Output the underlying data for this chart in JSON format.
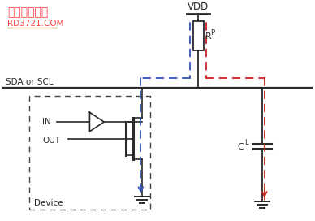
{
  "title_text": "手机设计天下",
  "subtitle_text": "RD3721.COM",
  "title_color": "#FF4444",
  "subtitle_color": "#FF4444",
  "vdd_label": "VDD",
  "rp_label": "R",
  "rp_sub": "P",
  "cl_label": "C",
  "cl_sub": "L",
  "sda_label": "SDA or SCL",
  "in_label": "IN",
  "out_label": "OUT",
  "device_label": "Device",
  "bg_color": "#FFFFFF",
  "line_color": "#2a2a2a",
  "blue_dash_color": "#3355BB",
  "red_dash_color": "#CC2222",
  "dashed_box_color": "#444444",
  "figw": 3.88,
  "figh": 2.72,
  "dpi": 100
}
